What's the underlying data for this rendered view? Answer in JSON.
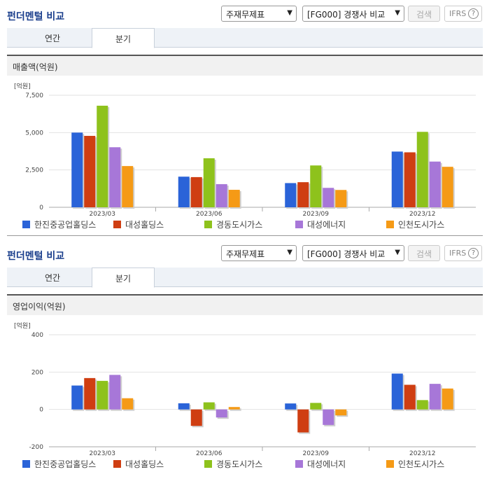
{
  "sections": [
    {
      "header_title": "펀더멘털 비교",
      "select1": "주재무제표",
      "select2": "[FG000] 경쟁사 비교",
      "search_label": "검색",
      "ifrs_label": "IFRS",
      "ifrs_help": "?",
      "tabs": [
        "연간",
        "분기"
      ],
      "subtitle": "매출액(억원)"
    },
    {
      "header_title": "펀더멘털 비교",
      "select1": "주재무제표",
      "select2": "[FG000] 경쟁사 비교",
      "search_label": "검색",
      "ifrs_label": "IFRS",
      "ifrs_help": "?",
      "tabs": [
        "연간",
        "분기"
      ],
      "subtitle": "영업이익(억원)"
    }
  ],
  "colors": [
    "#2a63d8",
    "#cf3e12",
    "#8ec21c",
    "#a777d8",
    "#f59a16"
  ],
  "chart_data": [
    {
      "type": "bar",
      "title": "매출액(억원)",
      "unit_label": "[억원]",
      "categories": [
        "2023/03",
        "2023/06",
        "2023/09",
        "2023/12"
      ],
      "yticks": [
        0,
        2500,
        5000,
        7500
      ],
      "ytick_labels": [
        "0",
        "2,500",
        "5,000",
        "7,500"
      ],
      "ylim": [
        0,
        7500
      ],
      "series": [
        {
          "name": "한진중공업홀딩스",
          "values": [
            5000,
            2050,
            1620,
            3730
          ]
        },
        {
          "name": "대성홀딩스",
          "values": [
            4780,
            2020,
            1680,
            3680
          ]
        },
        {
          "name": "경동도시가스",
          "values": [
            6800,
            3280,
            2800,
            5050
          ]
        },
        {
          "name": "대성에너지",
          "values": [
            4020,
            1550,
            1300,
            3060
          ]
        },
        {
          "name": "인천도시가스",
          "values": [
            2760,
            1170,
            1160,
            2710
          ]
        }
      ]
    },
    {
      "type": "bar",
      "title": "영업이익(억원)",
      "unit_label": "[억원]",
      "categories": [
        "2023/03",
        "2023/06",
        "2023/09",
        "2023/12"
      ],
      "yticks": [
        -200,
        0,
        200,
        400
      ],
      "ytick_labels": [
        "-200",
        "0",
        "200",
        "400"
      ],
      "ylim": [
        -200,
        400
      ],
      "series": [
        {
          "name": "한진중공업홀딩스",
          "values": [
            128,
            33,
            32,
            192
          ]
        },
        {
          "name": "대성홀딩스",
          "values": [
            168,
            -88,
            -123,
            132
          ]
        },
        {
          "name": "경동도시가스",
          "values": [
            153,
            38,
            35,
            50
          ]
        },
        {
          "name": "대성에너지",
          "values": [
            185,
            -43,
            -83,
            137
          ]
        },
        {
          "name": "인천도시가스",
          "values": [
            60,
            13,
            -32,
            112
          ]
        }
      ]
    }
  ]
}
